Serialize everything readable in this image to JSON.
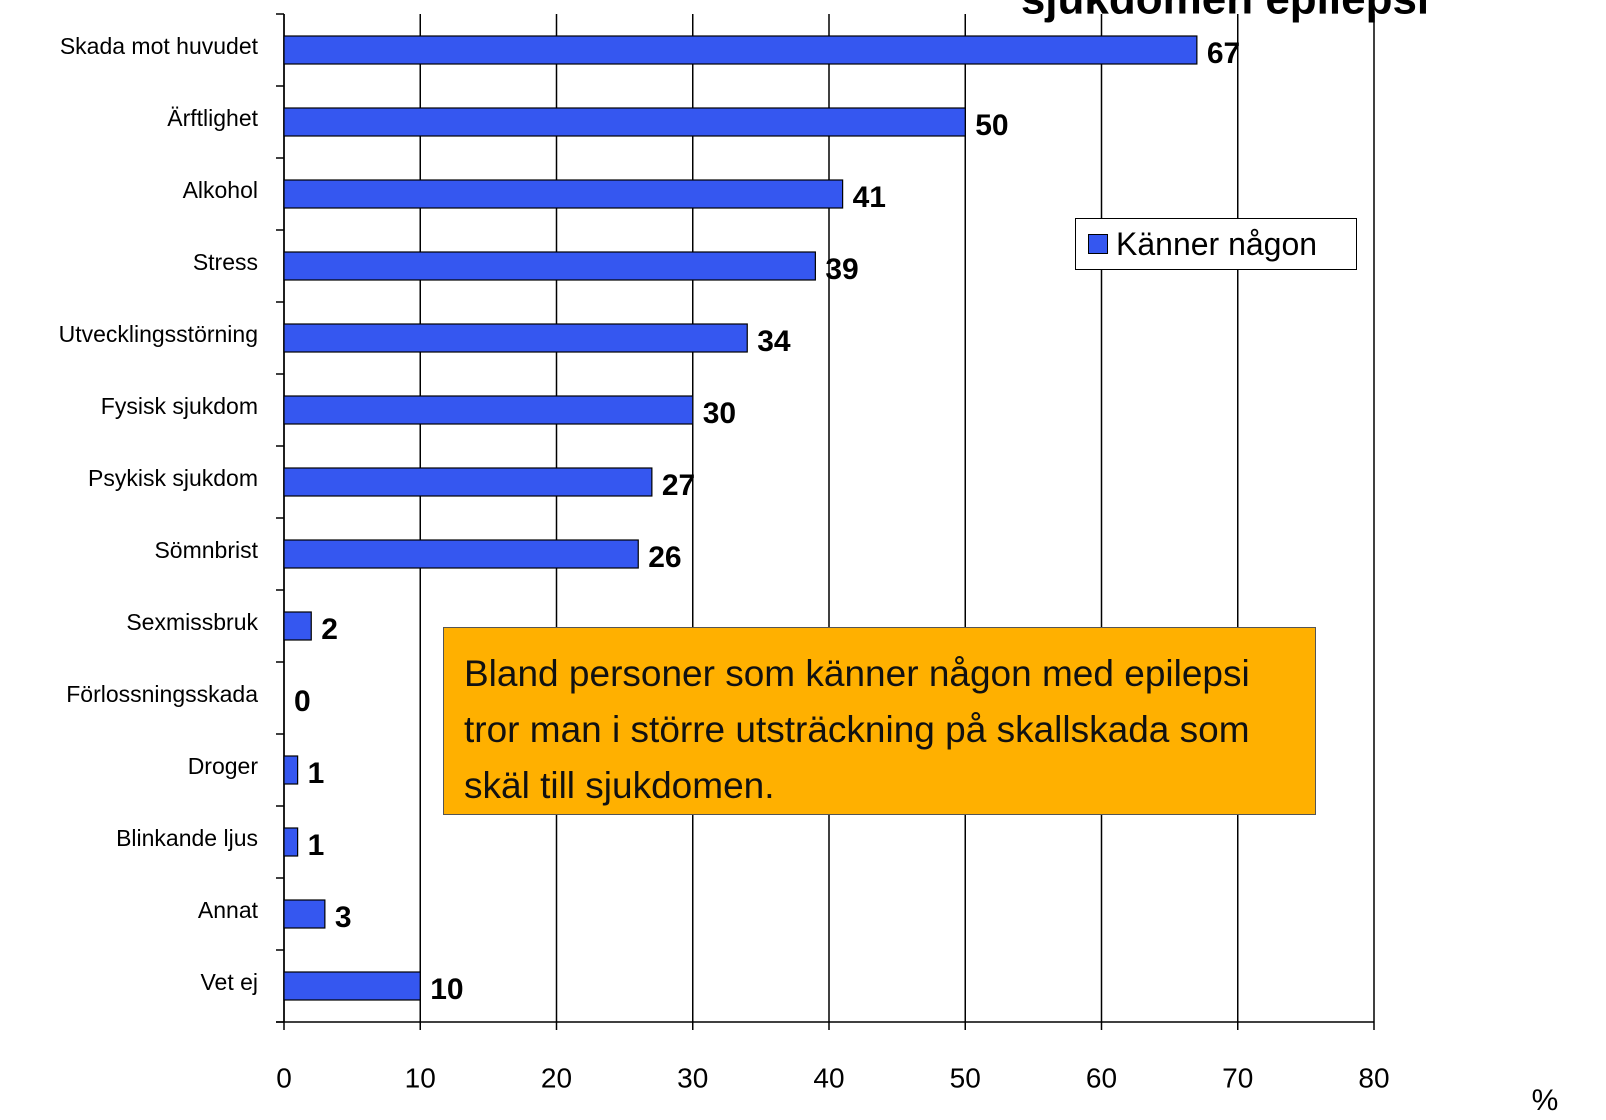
{
  "chart_data": {
    "type": "bar",
    "orientation": "horizontal",
    "title": "sjukdomen epilepsi",
    "categories": [
      "Skada mot huvudet",
      "Ärftlighet",
      "Alkohol",
      "Stress",
      "Utvecklingsstörning",
      "Fysisk sjukdom",
      "Psykisk sjukdom",
      "Sömnbrist",
      "Sexmissbruk",
      "Förlossningsskada",
      "Droger",
      "Blinkande ljus",
      "Annat",
      "Vet ej"
    ],
    "series": [
      {
        "name": "Känner någon",
        "color": "#3557f0",
        "values": [
          67,
          50,
          41,
          39,
          34,
          30,
          27,
          26,
          2,
          0,
          1,
          1,
          3,
          10
        ]
      }
    ],
    "xlim": [
      0,
      80
    ],
    "xticks": [
      0,
      10,
      20,
      30,
      40,
      50,
      60,
      70,
      80
    ],
    "xlabel": "%",
    "grid": true,
    "legend": "upper right",
    "annotation": "Bland personer som känner någon med epilepsi tror man i större utsträckning på skallskada som skäl till sjukdomen."
  }
}
